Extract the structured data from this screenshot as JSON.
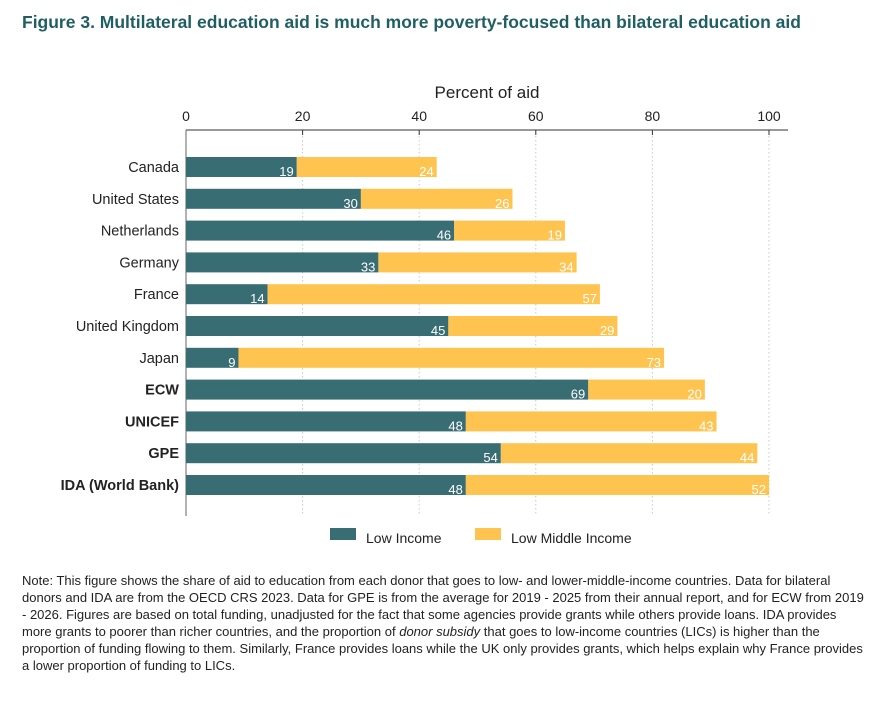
{
  "figure": {
    "title": "Figure 3. Multilateral education aid is much more poverty-focused than bilateral education aid"
  },
  "chart_data": {
    "type": "bar",
    "orientation": "horizontal",
    "stacked": true,
    "title": "",
    "xlabel": "Percent of aid",
    "ylabel": "",
    "xlim": [
      0,
      100
    ],
    "xticks": [
      0,
      20,
      40,
      60,
      80,
      100
    ],
    "grid": true,
    "legend_position": "bottom",
    "categories": [
      "Canada",
      "United States",
      "Netherlands",
      "Germany",
      "France",
      "United Kingdom",
      "Japan",
      "ECW",
      "UNICEF",
      "GPE",
      "IDA (World Bank)"
    ],
    "bold_categories": [
      "ECW",
      "UNICEF",
      "GPE",
      "IDA (World Bank)"
    ],
    "series": [
      {
        "name": "Low Income",
        "color": "#386d74",
        "values": [
          19,
          30,
          46,
          33,
          14,
          45,
          9,
          69,
          48,
          54,
          48
        ]
      },
      {
        "name": "Low Middle Income",
        "color": "#fec44f",
        "values": [
          24,
          26,
          19,
          34,
          57,
          29,
          73,
          20,
          43,
          44,
          52
        ]
      }
    ]
  },
  "note": {
    "part1": "Note: This figure shows the share of aid to education from each donor that goes to low- and lower-middle-income countries. Data for bilateral donors and IDA are from the OECD CRS 2023. Data for GPE is from the average for 2019 - 2025 from their annual report, and for ECW from 2019 - 2026. Figures are based on total funding, unadjusted for the fact that some agencies provide grants while others provide loans. IDA provides more grants to poorer than richer countries, and the proportion of ",
    "emphasis": "donor subsidy",
    "part2": " that goes to low-income countries (LICs) is higher than the proportion of funding flowing to them. Similarly, France provides loans while the UK only provides grants, which helps explain why France provides a lower proportion of funding to LICs."
  }
}
